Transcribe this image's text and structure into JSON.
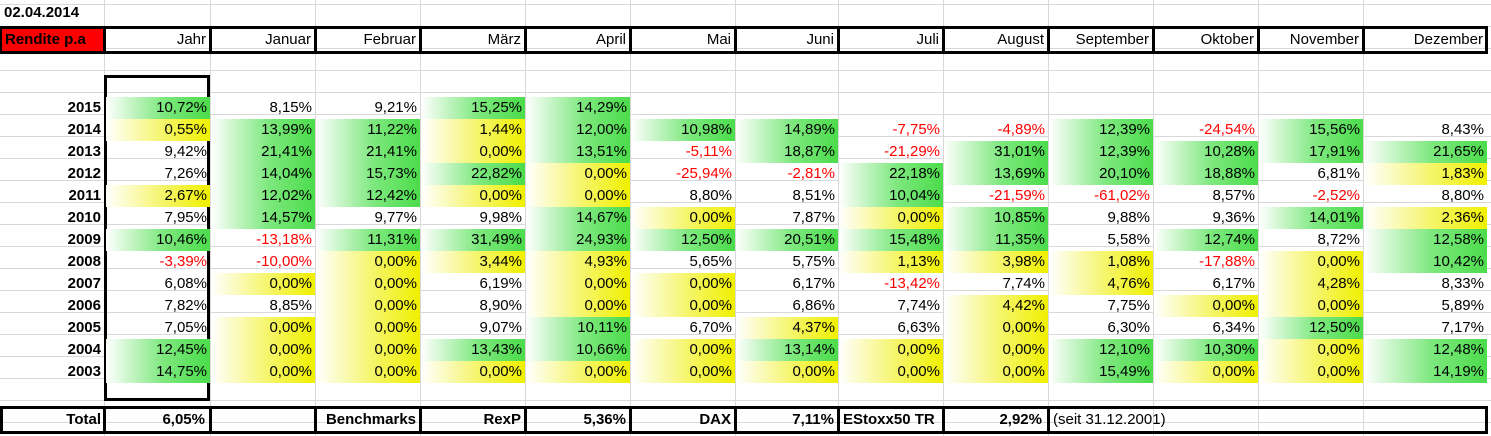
{
  "date": "02.04.2014",
  "title_label": "Rendite p.a",
  "columns": [
    "Jahr",
    "Januar",
    "Februar",
    "März",
    "April",
    "Mai",
    "Juni",
    "Juli",
    "August",
    "September",
    "Oktober",
    "November",
    "Dezember"
  ],
  "rows": [
    {
      "year": "2015",
      "values": [
        "10,72%",
        "8,15%",
        "9,21%",
        "15,25%",
        "14,29%",
        "",
        "",
        "",
        "",
        "",
        "",
        "",
        ""
      ],
      "fills": [
        "g",
        "",
        "",
        "g",
        "g",
        "",
        "",
        "",
        "",
        "",
        "",
        "",
        ""
      ]
    },
    {
      "year": "2014",
      "values": [
        "0,55%",
        "13,99%",
        "11,22%",
        "1,44%",
        "12,00%",
        "10,98%",
        "14,89%",
        "-7,75%",
        "-4,89%",
        "12,39%",
        "-24,54%",
        "15,56%",
        "8,43%"
      ],
      "fills": [
        "y",
        "g",
        "g",
        "y",
        "g",
        "g",
        "g",
        "",
        "",
        "g",
        "",
        "g",
        ""
      ]
    },
    {
      "year": "2013",
      "values": [
        "9,42%",
        "21,41%",
        "21,41%",
        "0,00%",
        "13,51%",
        "-5,11%",
        "18,87%",
        "-21,29%",
        "31,01%",
        "12,39%",
        "10,28%",
        "17,91%",
        "21,65%"
      ],
      "fills": [
        "",
        "g",
        "g",
        "y",
        "g",
        "",
        "g",
        "",
        "g",
        "g",
        "g",
        "g",
        "g"
      ]
    },
    {
      "year": "2012",
      "values": [
        "7,26%",
        "14,04%",
        "15,73%",
        "22,82%",
        "0,00%",
        "-25,94%",
        "-2,81%",
        "22,18%",
        "13,69%",
        "20,10%",
        "18,88%",
        "6,81%",
        "1,83%"
      ],
      "fills": [
        "",
        "g",
        "g",
        "g",
        "y",
        "",
        "",
        "g",
        "g",
        "g",
        "g",
        "",
        "y"
      ]
    },
    {
      "year": "2011",
      "values": [
        "2,67%",
        "12,02%",
        "12,42%",
        "0,00%",
        "0,00%",
        "8,80%",
        "8,51%",
        "10,04%",
        "-21,59%",
        "-61,02%",
        "8,57%",
        "-2,52%",
        "8,80%"
      ],
      "fills": [
        "y",
        "g",
        "g",
        "y",
        "y",
        "",
        "",
        "g",
        "",
        "",
        "",
        "",
        ""
      ]
    },
    {
      "year": "2010",
      "values": [
        "7,95%",
        "14,57%",
        "9,77%",
        "9,98%",
        "14,67%",
        "0,00%",
        "7,87%",
        "0,00%",
        "10,85%",
        "9,88%",
        "9,36%",
        "14,01%",
        "2,36%"
      ],
      "fills": [
        "",
        "g",
        "",
        "",
        "g",
        "y",
        "",
        "y",
        "g",
        "",
        "",
        "g",
        "y"
      ]
    },
    {
      "year": "2009",
      "values": [
        "10,46%",
        "-13,18%",
        "11,31%",
        "31,49%",
        "24,93%",
        "12,50%",
        "20,51%",
        "15,48%",
        "11,35%",
        "5,58%",
        "12,74%",
        "8,72%",
        "12,58%"
      ],
      "fills": [
        "g",
        "",
        "g",
        "g",
        "g",
        "g",
        "g",
        "g",
        "g",
        "",
        "g",
        "",
        "g"
      ]
    },
    {
      "year": "2008",
      "values": [
        "-3,39%",
        "-10,00%",
        "0,00%",
        "3,44%",
        "4,93%",
        "5,65%",
        "5,75%",
        "1,13%",
        "3,98%",
        "1,08%",
        "-17,88%",
        "0,00%",
        "10,42%"
      ],
      "fills": [
        "",
        "",
        "y",
        "y",
        "y",
        "",
        "",
        "y",
        "y",
        "y",
        "",
        "y",
        "g"
      ]
    },
    {
      "year": "2007",
      "values": [
        "6,08%",
        "0,00%",
        "0,00%",
        "6,19%",
        "0,00%",
        "0,00%",
        "6,17%",
        "-13,42%",
        "7,74%",
        "4,76%",
        "6,17%",
        "4,28%",
        "8,33%"
      ],
      "fills": [
        "",
        "y",
        "y",
        "",
        "y",
        "y",
        "",
        "",
        "",
        "y",
        "",
        "y",
        ""
      ]
    },
    {
      "year": "2006",
      "values": [
        "7,82%",
        "8,85%",
        "0,00%",
        "8,90%",
        "0,00%",
        "0,00%",
        "6,86%",
        "7,74%",
        "4,42%",
        "7,75%",
        "0,00%",
        "0,00%",
        "5,89%"
      ],
      "fills": [
        "",
        "",
        "y",
        "",
        "y",
        "y",
        "",
        "",
        "y",
        "",
        "y",
        "y",
        ""
      ]
    },
    {
      "year": "2005",
      "values": [
        "7,05%",
        "0,00%",
        "0,00%",
        "9,07%",
        "10,11%",
        "6,70%",
        "4,37%",
        "6,63%",
        "0,00%",
        "6,30%",
        "6,34%",
        "12,50%",
        "7,17%"
      ],
      "fills": [
        "",
        "y",
        "y",
        "",
        "g",
        "",
        "y",
        "",
        "y",
        "",
        "",
        "g",
        ""
      ]
    },
    {
      "year": "2004",
      "values": [
        "12,45%",
        "0,00%",
        "0,00%",
        "13,43%",
        "10,66%",
        "0,00%",
        "13,14%",
        "0,00%",
        "0,00%",
        "12,10%",
        "10,30%",
        "0,00%",
        "12,48%"
      ],
      "fills": [
        "g",
        "y",
        "y",
        "g",
        "g",
        "y",
        "g",
        "y",
        "y",
        "g",
        "g",
        "y",
        "g"
      ]
    },
    {
      "year": "2003",
      "values": [
        "14,75%",
        "0,00%",
        "0,00%",
        "0,00%",
        "0,00%",
        "0,00%",
        "0,00%",
        "0,00%",
        "0,00%",
        "15,49%",
        "0,00%",
        "0,00%",
        "14,19%"
      ],
      "fills": [
        "g",
        "y",
        "y",
        "y",
        "y",
        "y",
        "y",
        "y",
        "y",
        "g",
        "y",
        "y",
        "g"
      ]
    }
  ],
  "footer": {
    "total_label": "Total",
    "total_value": "6,05%",
    "benchmarks_label": "Benchmarks",
    "rexp_label": "RexP",
    "rexp_value": "5,36%",
    "dax_label": "DAX",
    "dax_value": "7,11%",
    "estoxx_label": "EStoxx50 TR",
    "estoxx_value": "2,92%",
    "since_note": "(seit 31.12.2001)"
  },
  "colors": {
    "green": "#4bdc4b",
    "yellow": "#f0f000",
    "negative": "#ff0000",
    "header_red": "#ff0000"
  }
}
